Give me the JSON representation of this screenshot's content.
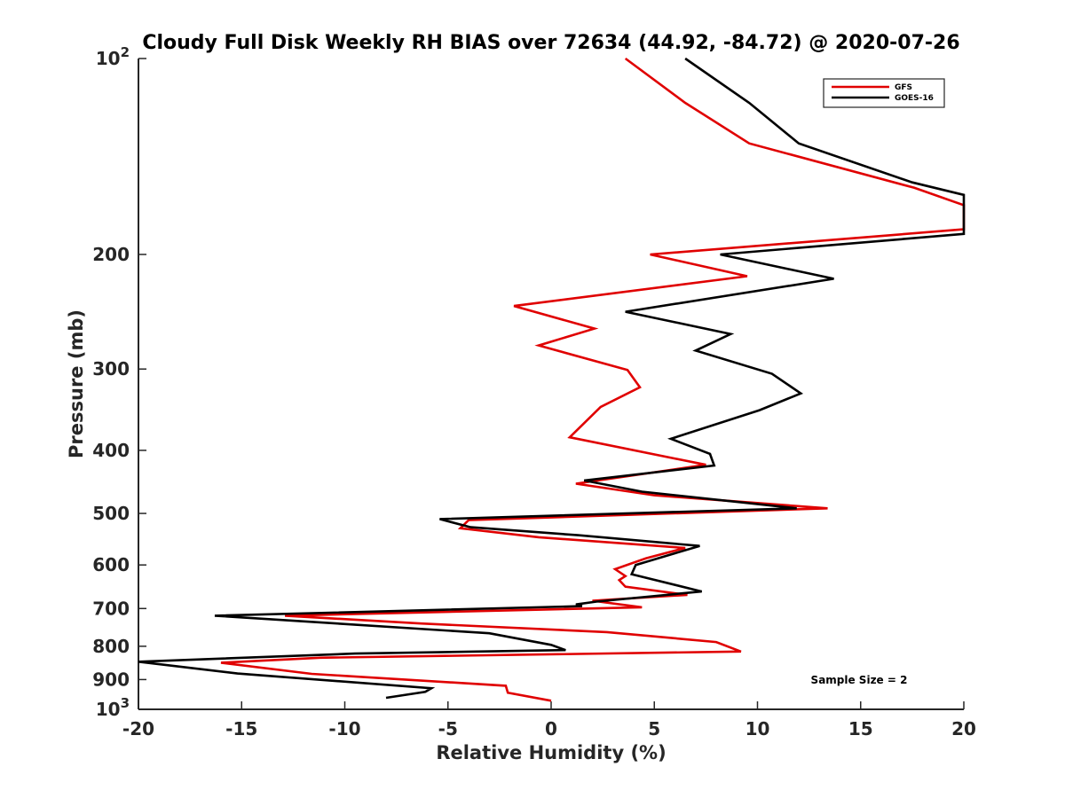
{
  "chart_data": {
    "type": "line",
    "title": "Cloudy Full Disk Weekly RH BIAS over 72634 (44.92, -84.72) @ 2020-07-26",
    "xlabel": "Relative Humidity (%)",
    "ylabel": "Pressure (mb)",
    "xlim": [
      -20,
      20
    ],
    "ylim": [
      100,
      1000
    ],
    "y_scale": "log",
    "y_direction": "reversed",
    "x_ticks": [
      -20,
      -15,
      -10,
      -5,
      0,
      5,
      10,
      15,
      20
    ],
    "x_tick_labels": [
      "-20",
      "-15",
      "-10",
      "-5",
      "0",
      "5",
      "10",
      "15",
      "20"
    ],
    "y_ticks": [
      100,
      200,
      300,
      400,
      500,
      600,
      700,
      800,
      900,
      1000
    ],
    "y_tick_labels": [
      {
        "base": "10",
        "exp": "2"
      },
      {
        "base": "200"
      },
      {
        "base": "300"
      },
      {
        "base": "400"
      },
      {
        "base": "500"
      },
      {
        "base": "600"
      },
      {
        "base": "700"
      },
      {
        "base": "800"
      },
      {
        "base": "900"
      },
      {
        "base": "10",
        "exp": "3"
      }
    ],
    "grid": false,
    "legend_position": "top-right",
    "annotation": "Sample Size = 2",
    "series": [
      {
        "name": "GFS",
        "color": "#e00000",
        "points": [
          [
            3.6,
            100
          ],
          [
            6.5,
            117
          ],
          [
            9.6,
            135
          ],
          [
            17.6,
            158
          ],
          [
            20.0,
            168
          ],
          [
            20.0,
            183
          ],
          [
            4.8,
            200
          ],
          [
            9.5,
            216
          ],
          [
            -1.8,
            240
          ],
          [
            2.1,
            260
          ],
          [
            -0.6,
            276
          ],
          [
            3.7,
            301
          ],
          [
            4.3,
            320
          ],
          [
            2.4,
            343
          ],
          [
            0.9,
            382
          ],
          [
            7.5,
            421
          ],
          [
            1.2,
            450
          ],
          [
            5.0,
            469
          ],
          [
            13.4,
            491
          ],
          [
            -4.0,
            512
          ],
          [
            -4.4,
            527
          ],
          [
            -0.6,
            544
          ],
          [
            6.5,
            565
          ],
          [
            4.6,
            586
          ],
          [
            3.1,
            609
          ],
          [
            3.6,
            624
          ],
          [
            3.3,
            633
          ],
          [
            3.6,
            648
          ],
          [
            6.6,
            667
          ],
          [
            2.0,
            681
          ],
          [
            4.4,
            697
          ],
          [
            -12.9,
            718
          ],
          [
            -6.3,
            738
          ],
          [
            2.7,
            761
          ],
          [
            8.0,
            788
          ],
          [
            9.2,
            815
          ],
          [
            -11.2,
            833
          ],
          [
            -16.0,
            848
          ],
          [
            -11.6,
            882
          ],
          [
            -2.2,
            920
          ],
          [
            -2.1,
            943
          ],
          [
            0.0,
            970
          ]
        ]
      },
      {
        "name": "GOES-16",
        "color": "#000000",
        "points": [
          [
            6.5,
            100
          ],
          [
            9.6,
            117
          ],
          [
            12.0,
            135
          ],
          [
            17.5,
            155
          ],
          [
            20.0,
            162
          ],
          [
            20.0,
            186
          ],
          [
            8.2,
            200
          ],
          [
            13.7,
            218
          ],
          [
            3.6,
            245
          ],
          [
            8.7,
            265
          ],
          [
            7.0,
            281
          ],
          [
            10.7,
            305
          ],
          [
            12.1,
            327
          ],
          [
            10.1,
            347
          ],
          [
            5.8,
            384
          ],
          [
            7.7,
            405
          ],
          [
            7.9,
            422
          ],
          [
            1.6,
            445
          ],
          [
            4.4,
            463
          ],
          [
            11.9,
            491
          ],
          [
            -5.4,
            510
          ],
          [
            -3.9,
            525
          ],
          [
            1.3,
            540
          ],
          [
            7.2,
            561
          ],
          [
            4.1,
            600
          ],
          [
            3.9,
            620
          ],
          [
            7.3,
            659
          ],
          [
            2.2,
            683
          ],
          [
            1.2,
            690
          ],
          [
            1.5,
            694
          ],
          [
            -16.3,
            718
          ],
          [
            -3.0,
            764
          ],
          [
            0.0,
            796
          ],
          [
            0.7,
            811
          ],
          [
            -9.5,
            821
          ],
          [
            -20.0,
            845
          ],
          [
            -15.2,
            881
          ],
          [
            -5.8,
            928
          ],
          [
            -6.1,
            940
          ],
          [
            -8.0,
            960
          ]
        ]
      }
    ]
  }
}
